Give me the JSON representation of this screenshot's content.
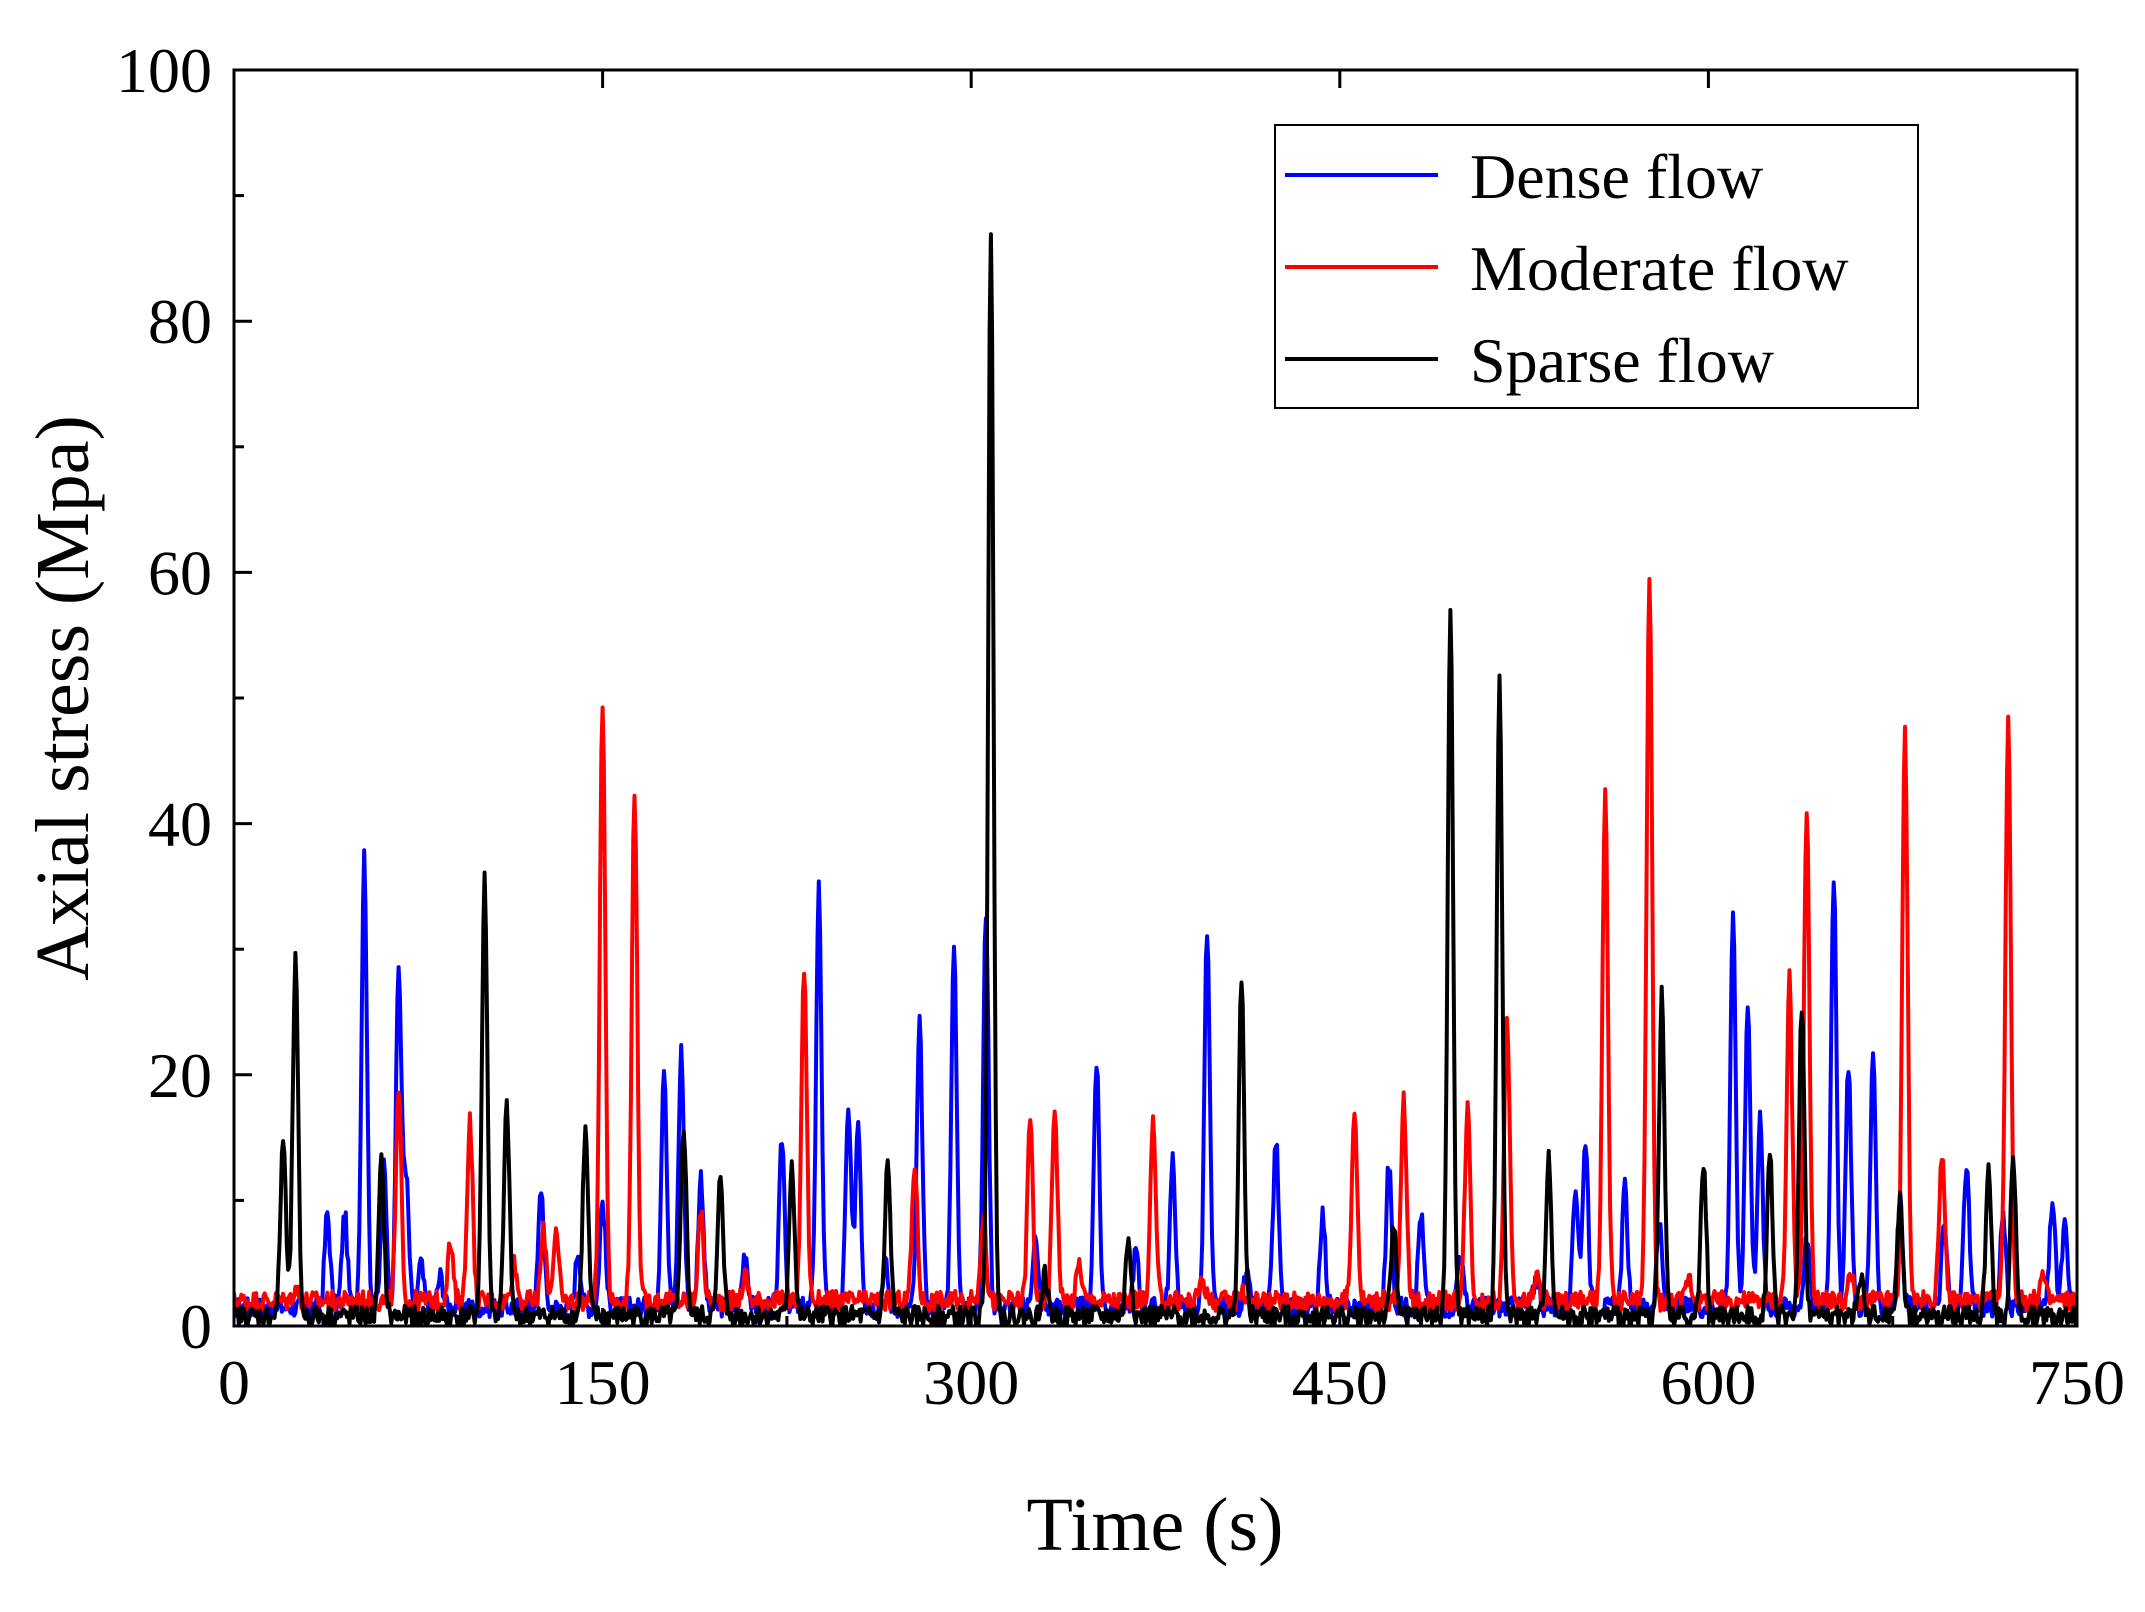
{
  "chart_data": {
    "type": "line",
    "title": "",
    "xlabel": "Time (s)",
    "ylabel": "Axial stress (Mpa)",
    "xlim": [
      0,
      750
    ],
    "ylim": [
      0,
      100
    ],
    "xticks": [
      0,
      150,
      300,
      450,
      600,
      750
    ],
    "xtick_labels": [
      "0",
      "150",
      "300",
      "450",
      "600",
      "750"
    ],
    "yticks": [
      0,
      20,
      40,
      60,
      80,
      100
    ],
    "ytick_labels": [
      "0",
      "20",
      "40",
      "60",
      "80",
      "100"
    ],
    "grid": false,
    "legend_position": "top-right",
    "series": [
      {
        "name": "Dense flow",
        "color": "#0000ff",
        "baseline": 1.5,
        "peaks": [
          [
            38,
            9
          ],
          [
            45,
            9
          ],
          [
            53,
            37.5
          ],
          [
            61,
            13
          ],
          [
            67,
            28.5
          ],
          [
            70,
            12
          ],
          [
            76,
            5
          ],
          [
            84,
            4
          ],
          [
            125,
            11
          ],
          [
            140,
            6
          ],
          [
            150,
            10
          ],
          [
            175,
            21
          ],
          [
            182,
            22
          ],
          [
            190,
            12
          ],
          [
            208,
            6
          ],
          [
            223,
            15
          ],
          [
            238,
            35
          ],
          [
            250,
            17
          ],
          [
            254,
            16.5
          ],
          [
            265,
            5
          ],
          [
            279,
            24
          ],
          [
            293,
            30
          ],
          [
            306,
            33
          ],
          [
            326,
            7
          ],
          [
            351,
            21
          ],
          [
            367,
            6
          ],
          [
            382,
            13
          ],
          [
            396,
            31.5
          ],
          [
            412,
            4
          ],
          [
            424,
            15
          ],
          [
            443,
            9
          ],
          [
            470,
            13
          ],
          [
            483,
            9
          ],
          [
            499,
            6
          ],
          [
            530,
            4
          ],
          [
            546,
            11
          ],
          [
            550,
            15
          ],
          [
            566,
            11
          ],
          [
            580,
            8
          ],
          [
            610,
            32.5
          ],
          [
            616,
            26
          ],
          [
            621,
            16.5
          ],
          [
            640,
            7
          ],
          [
            651,
            36
          ],
          [
            657,
            21
          ],
          [
            667,
            21
          ],
          [
            678,
            10
          ],
          [
            696,
            8
          ],
          [
            705,
            13
          ],
          [
            720,
            9
          ],
          [
            740,
            10
          ],
          [
            745,
            8
          ]
        ]
      },
      {
        "name": "Moderate flow",
        "color": "#ff0000",
        "baseline": 2,
        "peaks": [
          [
            25,
            3
          ],
          [
            67,
            18.5
          ],
          [
            88,
            6.5
          ],
          [
            96,
            16.5
          ],
          [
            114,
            5
          ],
          [
            126,
            7.5
          ],
          [
            131,
            7.5
          ],
          [
            150,
            50
          ],
          [
            163,
            43
          ],
          [
            190,
            9
          ],
          [
            208,
            4
          ],
          [
            232,
            28.5
          ],
          [
            277,
            13
          ],
          [
            305,
            9
          ],
          [
            324,
            16.5
          ],
          [
            334,
            17.5
          ],
          [
            344,
            5
          ],
          [
            374,
            16
          ],
          [
            394,
            4
          ],
          [
            410,
            3
          ],
          [
            456,
            17.5
          ],
          [
            476,
            18
          ],
          [
            502,
            17.5
          ],
          [
            518,
            25
          ],
          [
            530,
            4
          ],
          [
            558,
            42.5
          ],
          [
            576,
            60
          ],
          [
            592,
            4
          ],
          [
            633,
            28
          ],
          [
            640,
            41.5
          ],
          [
            658,
            4
          ],
          [
            680,
            47.5
          ],
          [
            695,
            14
          ],
          [
            720,
            3
          ],
          [
            722,
            48
          ],
          [
            736,
            4
          ]
        ]
      },
      {
        "name": "Sparse flow",
        "color": "#000000",
        "baseline": 0.8,
        "peaks": [
          [
            20,
            15
          ],
          [
            25,
            29
          ],
          [
            60,
            13
          ],
          [
            102,
            35.5
          ],
          [
            111,
            17.5
          ],
          [
            143,
            15.5
          ],
          [
            183,
            16
          ],
          [
            198,
            12
          ],
          [
            227,
            13
          ],
          [
            266,
            13
          ],
          [
            308,
            87
          ],
          [
            330,
            4
          ],
          [
            364,
            7
          ],
          [
            410,
            27.5
          ],
          [
            472,
            8
          ],
          [
            495,
            57
          ],
          [
            515,
            52
          ],
          [
            535,
            13.5
          ],
          [
            581,
            26.5
          ],
          [
            598,
            13
          ],
          [
            625,
            14
          ],
          [
            638,
            25.5
          ],
          [
            662,
            4
          ],
          [
            678,
            10
          ],
          [
            714,
            12.5
          ],
          [
            724,
            13
          ]
        ]
      }
    ]
  }
}
